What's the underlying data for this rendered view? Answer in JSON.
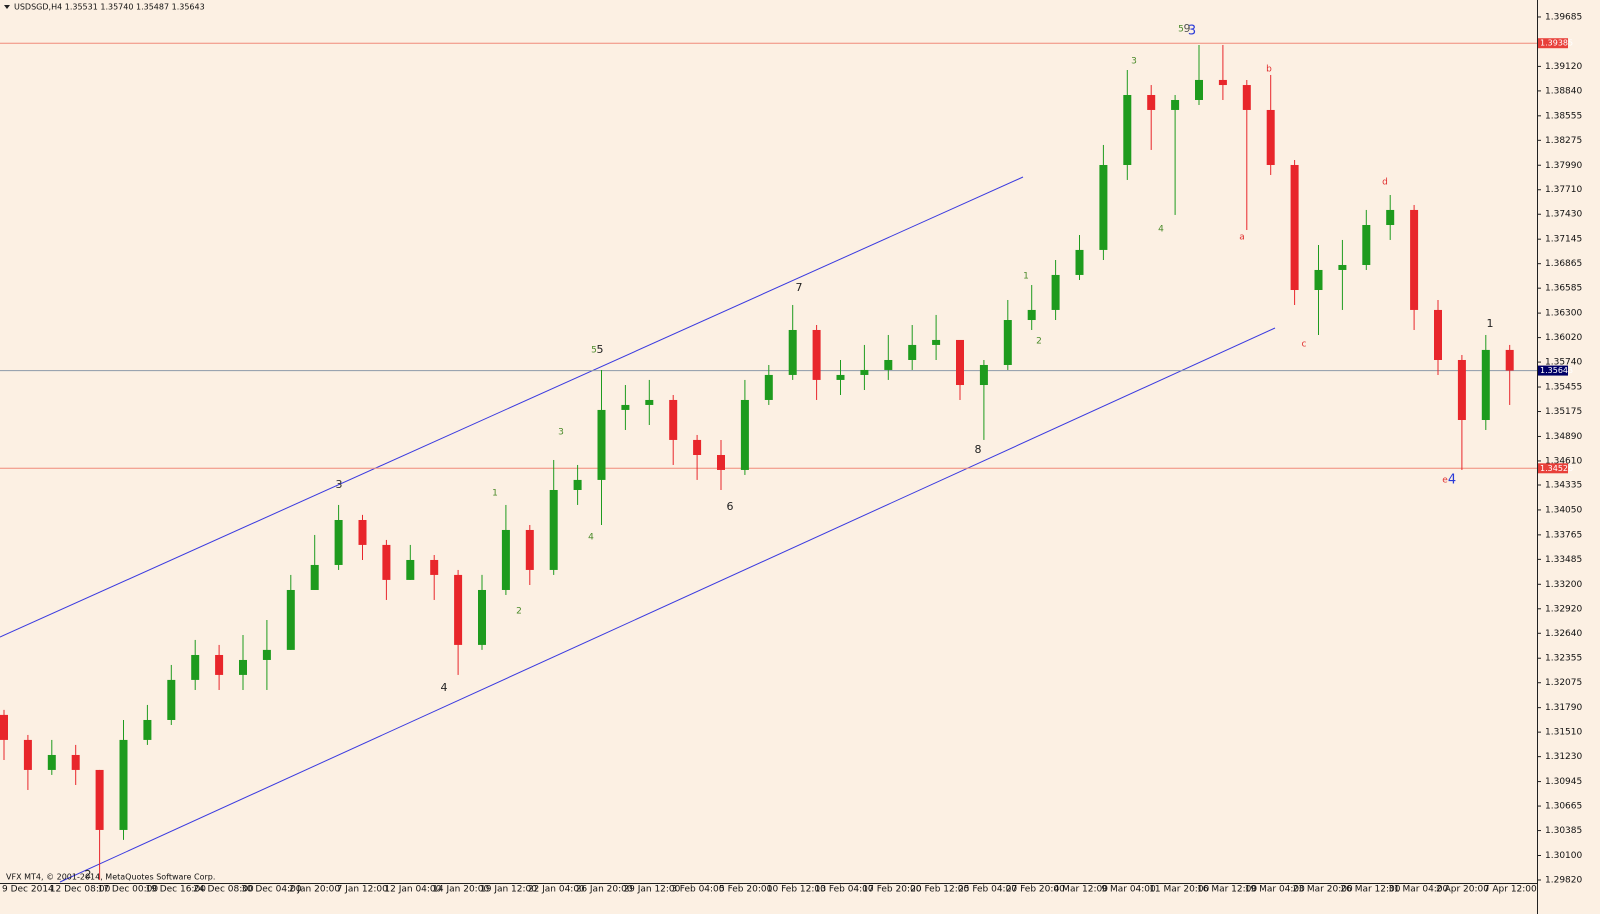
{
  "chart_data": {
    "type": "candlestick",
    "header": "USDSGD,H4  1.35531 1.35740 1.35487 1.35643",
    "footer": "VFX MT4, © 2001-2014, MetaQuotes Software Corp.",
    "up_color": "#1e9b1e",
    "down_color": "#e8262b",
    "categories": [
      "9 Dec 2014",
      null,
      "12 Dec 08:00",
      null,
      "17 Dec 00:00",
      null,
      "19 Dec 16:00",
      null,
      "24 Dec 08:00",
      null,
      "30 Dec 04:00",
      null,
      "2 Jan 20:00",
      null,
      "7 Jan 12:00",
      null,
      "12 Jan 04:00",
      null,
      "14 Jan 20:00",
      null,
      "19 Jan 12:00",
      null,
      "22 Jan 04:00",
      null,
      "26 Jan 20:00",
      null,
      "29 Jan 12:00",
      null,
      "3 Feb 04:00",
      null,
      "5 Feb 20:00",
      null,
      "10 Feb 12:00",
      null,
      "13 Feb 04:00",
      null,
      "17 Feb 20:00",
      null,
      "20 Feb 12:00",
      null,
      "25 Feb 04:00",
      null,
      "27 Feb 20:00",
      null,
      "4 Mar 12:00",
      null,
      "9 Mar 04:00",
      null,
      "11 Mar 20:00",
      null,
      "16 Mar 12:00",
      null,
      "19 Mar 04:00",
      null,
      "23 Mar 20:00",
      null,
      "26 Mar 12:00",
      null,
      "31 Mar 04:00",
      null,
      "2 Apr 20:00",
      null,
      "7 Apr 12:00",
      null
    ],
    "open": [
      1.31707,
      1.31421,
      1.31078,
      1.31249,
      1.31078,
      1.30392,
      1.31421,
      1.31649,
      1.32107,
      1.32392,
      1.32164,
      1.32335,
      1.3245,
      1.33135,
      1.33421,
      1.33935,
      1.3365,
      1.3325,
      1.33478,
      1.33307,
      1.32507,
      1.33135,
      1.33821,
      1.33364,
      1.34278,
      1.34393,
      1.35193,
      1.3525,
      1.35307,
      1.3485,
      1.34678,
      1.34507,
      1.35307,
      1.35593,
      1.36107,
      1.35536,
      1.35593,
      1.3565,
      1.35764,
      1.35936,
      1.35993,
      1.35478,
      1.35707,
      1.36221,
      1.36336,
      1.36736,
      1.37022,
      1.37993,
      1.38793,
      1.38622,
      1.38736,
      1.38965,
      1.38907,
      1.38622,
      1.37993,
      1.36564,
      1.36793,
      1.3685,
      1.37307,
      1.37479,
      1.36336,
      1.35764,
      1.35078,
      1.35879
    ],
    "high": [
      1.31764,
      1.31478,
      1.31421,
      1.31364,
      1.31078,
      1.31649,
      1.31821,
      1.32278,
      1.32564,
      1.32507,
      1.32621,
      1.32792,
      1.33307,
      1.33764,
      1.34107,
      1.33993,
      1.33707,
      1.3365,
      1.33535,
      1.33364,
      1.33307,
      1.34107,
      1.33878,
      1.34621,
      1.34564,
      1.3565,
      1.35478,
      1.35536,
      1.35364,
      1.34907,
      1.3485,
      1.35536,
      1.35707,
      1.36393,
      1.36164,
      1.35764,
      1.35936,
      1.3605,
      1.36164,
      1.36279,
      1.35993,
      1.35764,
      1.3645,
      1.36621,
      1.36907,
      1.37193,
      1.38222,
      1.39079,
      1.38907,
      1.38793,
      1.39365,
      1.39365,
      1.38965,
      1.39022,
      1.3805,
      1.37079,
      1.37136,
      1.37479,
      1.3765,
      1.37536,
      1.3645,
      1.35821,
      1.3605,
      1.35936
    ],
    "low": [
      1.31192,
      1.30849,
      1.31021,
      1.30906,
      1.29821,
      1.30278,
      1.31364,
      1.31592,
      1.31992,
      1.31992,
      1.31992,
      1.31992,
      1.3245,
      1.33135,
      1.33364,
      1.33478,
      1.33021,
      1.3325,
      1.33021,
      1.32164,
      1.3245,
      1.33078,
      1.33192,
      1.33307,
      1.34107,
      1.33878,
      1.34964,
      1.35021,
      1.34564,
      1.34393,
      1.34278,
      1.3445,
      1.3525,
      1.35536,
      1.35307,
      1.35364,
      1.35421,
      1.35536,
      1.3565,
      1.35764,
      1.35307,
      1.3485,
      1.3565,
      1.36107,
      1.36221,
      1.36679,
      1.36907,
      1.37822,
      1.38165,
      1.37422,
      1.38679,
      1.38736,
      1.3725,
      1.37879,
      1.36393,
      1.3605,
      1.36336,
      1.36793,
      1.37136,
      1.36107,
      1.35593,
      1.34507,
      1.34964,
      1.3525
    ],
    "close": [
      1.31421,
      1.31078,
      1.31249,
      1.31078,
      1.30392,
      1.31421,
      1.31649,
      1.32107,
      1.32392,
      1.32164,
      1.32335,
      1.3245,
      1.33135,
      1.33421,
      1.33935,
      1.3365,
      1.3325,
      1.33478,
      1.33307,
      1.32507,
      1.33135,
      1.33821,
      1.33364,
      1.34278,
      1.34393,
      1.35193,
      1.3525,
      1.35307,
      1.3485,
      1.34678,
      1.34507,
      1.35307,
      1.35593,
      1.36107,
      1.35536,
      1.35593,
      1.3565,
      1.35764,
      1.35936,
      1.35993,
      1.35478,
      1.35707,
      1.36221,
      1.36336,
      1.36736,
      1.37022,
      1.37993,
      1.38793,
      1.38622,
      1.38736,
      1.38965,
      1.38907,
      1.38622,
      1.37993,
      1.36564,
      1.36793,
      1.3685,
      1.37307,
      1.37479,
      1.36336,
      1.35764,
      1.35078,
      1.35879,
      1.35643
    ],
    "ylim": [
      1.29797,
      1.39879
    ],
    "yticks": [
      1.39685,
      {
        "value": 1.3912,
        "label": "1.39120"
      },
      {
        "value": 1.3884,
        "label": "1.38840"
      },
      1.38555,
      1.38275,
      {
        "value": 1.3799,
        "label": "1.37990"
      },
      {
        "value": 1.3771,
        "label": "1.37710"
      },
      {
        "value": 1.3743,
        "label": "1.37430"
      },
      1.37145,
      1.36865,
      1.36585,
      {
        "value": 1.363,
        "label": "1.36300"
      },
      {
        "value": 1.3602,
        "label": "1.36020"
      },
      {
        "value": 1.3574,
        "label": "1.35740"
      },
      1.35455,
      1.35175,
      {
        "value": 1.3489,
        "label": "1.34890"
      },
      {
        "value": 1.3461,
        "label": "1.34610"
      },
      1.34335,
      {
        "value": 1.3405,
        "label": "1.34050"
      },
      1.33765,
      1.33485,
      {
        "value": 1.332,
        "label": "1.33200"
      },
      {
        "value": 1.3292,
        "label": "1.32920"
      },
      {
        "value": 1.3264,
        "label": "1.32640"
      },
      1.32355,
      1.32075,
      {
        "value": 1.3179,
        "label": "1.31790"
      },
      {
        "value": 1.3151,
        "label": "1.31510"
      },
      {
        "value": 1.3123,
        "label": "1.31230"
      },
      1.30945,
      1.30665,
      1.30385,
      {
        "value": 1.301,
        "label": "1.30100"
      },
      {
        "value": 1.2982,
        "label": "1.29820"
      }
    ],
    "hlines": [
      {
        "value": 1.39385,
        "color": "#f08a7a"
      },
      {
        "value": 1.35643,
        "color": "#8c9aa8"
      },
      {
        "value": 1.34526,
        "color": "#f08a7a"
      }
    ],
    "annotations": [
      {
        "text": "2",
        "color": "#222222"
      },
      {
        "text": "3",
        "color": "#333333"
      },
      {
        "text": "4",
        "color": "#222222"
      },
      {
        "text": "5",
        "color": "#4a8a2a"
      },
      {
        "text": "5",
        "color": "#222222"
      },
      {
        "text": "7",
        "color": "#222222"
      },
      {
        "text": "6",
        "color": "#222222"
      },
      {
        "text": "8",
        "color": "#222222"
      },
      {
        "text": "5",
        "color": "#4a8a2a"
      },
      {
        "text": "9",
        "color": "#555555"
      },
      {
        "text": "3",
        "color": "#2a3ad8"
      },
      {
        "text": "e",
        "color": "#e03030"
      },
      {
        "text": "4",
        "color": "#2a3ad8"
      },
      {
        "text": "1",
        "color": "#4a8a2a"
      },
      {
        "text": "2",
        "color": "#4a8a2a"
      },
      {
        "text": "3",
        "color": "#4a8a2a"
      },
      {
        "text": "4",
        "color": "#4a8a2a"
      },
      {
        "text": "1",
        "color": "#4a8a2a"
      },
      {
        "text": "2",
        "color": "#4a8a2a"
      },
      {
        "text": "3",
        "color": "#4a8a2a"
      },
      {
        "text": "4",
        "color": "#4a8a2a"
      },
      {
        "text": "a",
        "color": "#e03030"
      },
      {
        "text": "b",
        "color": "#e03030"
      },
      {
        "text": "c",
        "color": "#e03030"
      },
      {
        "text": "d",
        "color": "#e03030"
      },
      {
        "text": "1",
        "color": "#222222"
      }
    ]
  }
}
